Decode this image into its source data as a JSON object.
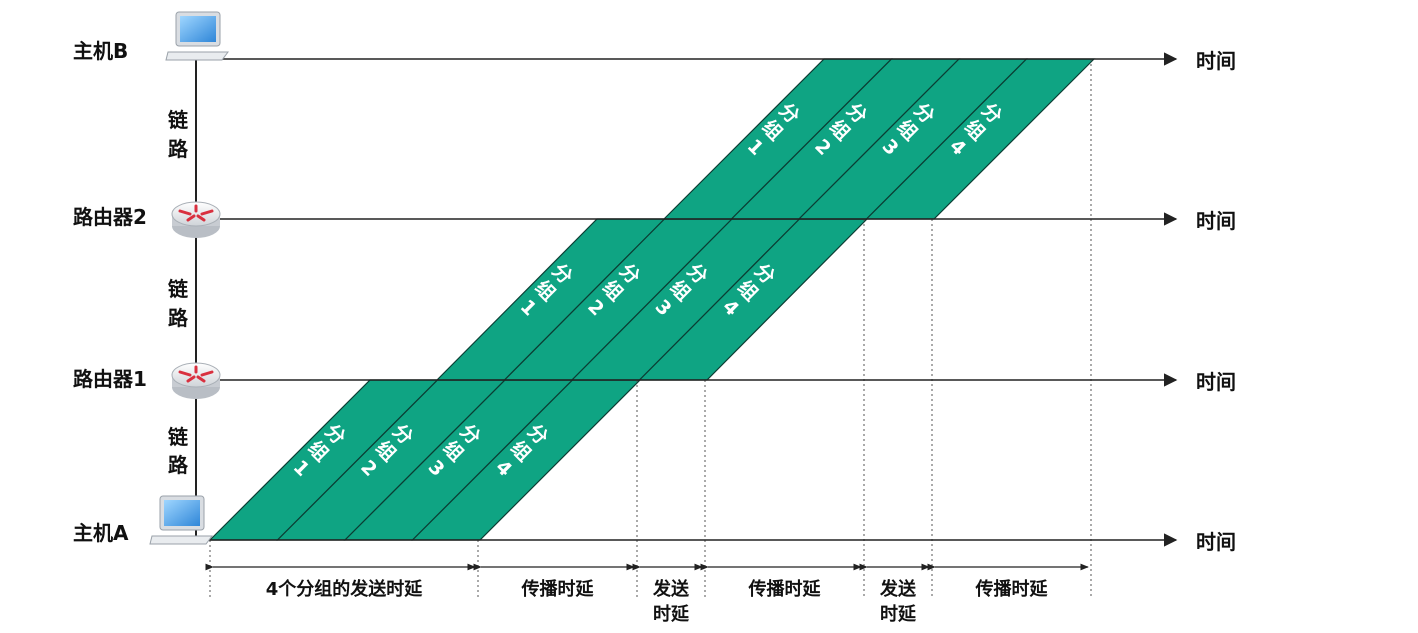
{
  "nodes": [
    {
      "id": "host-b",
      "label": "主机B",
      "kind": "laptop"
    },
    {
      "id": "router-2",
      "label": "路由器2",
      "kind": "router"
    },
    {
      "id": "router-1",
      "label": "路由器1",
      "kind": "router"
    },
    {
      "id": "host-a",
      "label": "主机A",
      "kind": "laptop"
    }
  ],
  "link_label": [
    "链",
    "路"
  ],
  "time_label": "时间",
  "packet_prefix": [
    "分",
    "组"
  ],
  "packets": [
    "1",
    "2",
    "3",
    "4"
  ],
  "delays": [
    {
      "lines": [
        "4个分组的发送时延"
      ]
    },
    {
      "lines": [
        "传播时延"
      ]
    },
    {
      "lines": [
        "发送",
        "时延"
      ]
    },
    {
      "lines": [
        "传播时延"
      ]
    },
    {
      "lines": [
        "发送",
        "时延"
      ]
    },
    {
      "lines": [
        "传播时延"
      ]
    }
  ],
  "colors": {
    "packet_fill": "#0fa483",
    "packet_stroke": "#0b3d33",
    "axis": "#222222",
    "router_red": "#d9303f"
  },
  "icons": [
    "laptop-icon",
    "router-icon"
  ]
}
